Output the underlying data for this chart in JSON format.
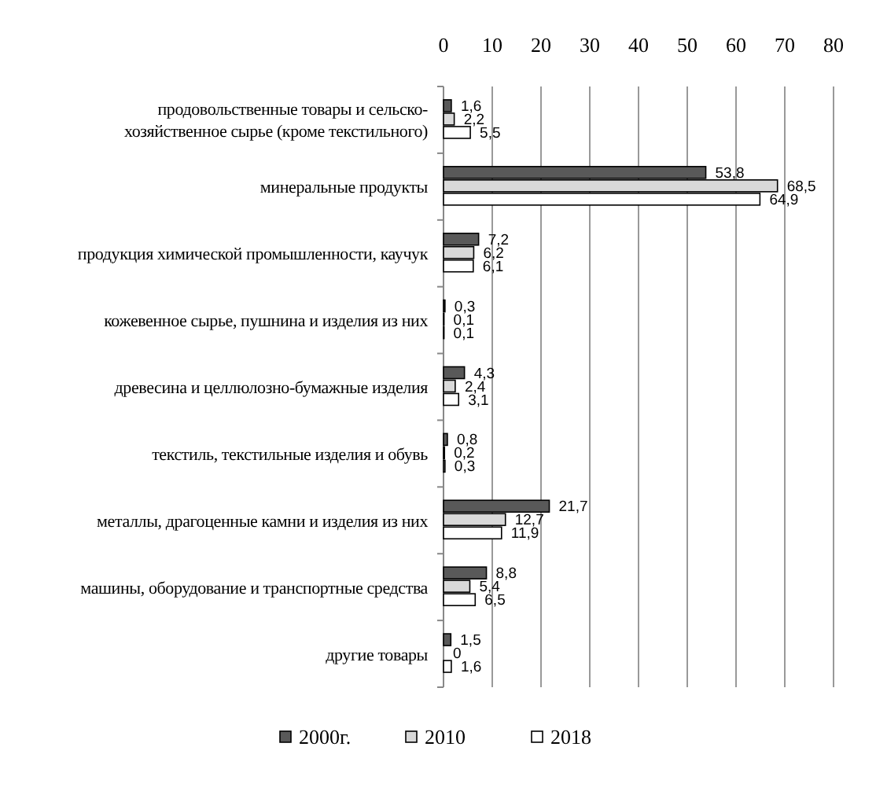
{
  "chart_data": {
    "type": "bar",
    "orientation": "horizontal",
    "categories": [
      "продовольственные товары и сельско-хозяйственное сырье (кроме текстильного)",
      "минеральные  продукты",
      "продукция химической промышленности, каучук",
      "кожевенное сырье, пушнина и изделия из них",
      "древесина и  целлюлозно-бумажные изделия",
      "текстиль, текстильные изделия и обувь",
      "металлы, драгоценные камни и изделия из них",
      "машины, оборудование и транспортные  средства",
      "другие товары"
    ],
    "series": [
      {
        "name": "2000г.",
        "color": "#595959",
        "values": [
          1.6,
          53.8,
          7.2,
          0.3,
          4.3,
          0.8,
          21.7,
          8.8,
          1.5
        ],
        "value_labels": [
          "1,6",
          "53,8",
          "7,2",
          "0,3",
          "4,3",
          "0,8",
          "21,7",
          "8,8",
          "1,5"
        ]
      },
      {
        "name": "2010",
        "color": "#d9d9d9",
        "values": [
          2.2,
          68.5,
          6.2,
          0.1,
          2.4,
          0.2,
          12.7,
          5.4,
          0
        ],
        "value_labels": [
          "2,2",
          "68,5",
          "6,2",
          "0,1",
          "2,4",
          "0,2",
          "12,7",
          "5,4",
          "0"
        ]
      },
      {
        "name": "2018",
        "color": "#ffffff",
        "values": [
          5.5,
          64.9,
          6.1,
          0.1,
          3.1,
          0.3,
          11.9,
          6.5,
          1.6
        ],
        "value_labels": [
          "5,5",
          "64,9",
          "6,1",
          "0,1",
          "3,1",
          "0,3",
          "11,9",
          "6,5",
          "1,6"
        ]
      }
    ],
    "xlim": [
      0,
      80
    ],
    "xticks": [
      0,
      10,
      20,
      30,
      40,
      50,
      60,
      70,
      80
    ],
    "grid": "x",
    "legend": "bottom"
  }
}
